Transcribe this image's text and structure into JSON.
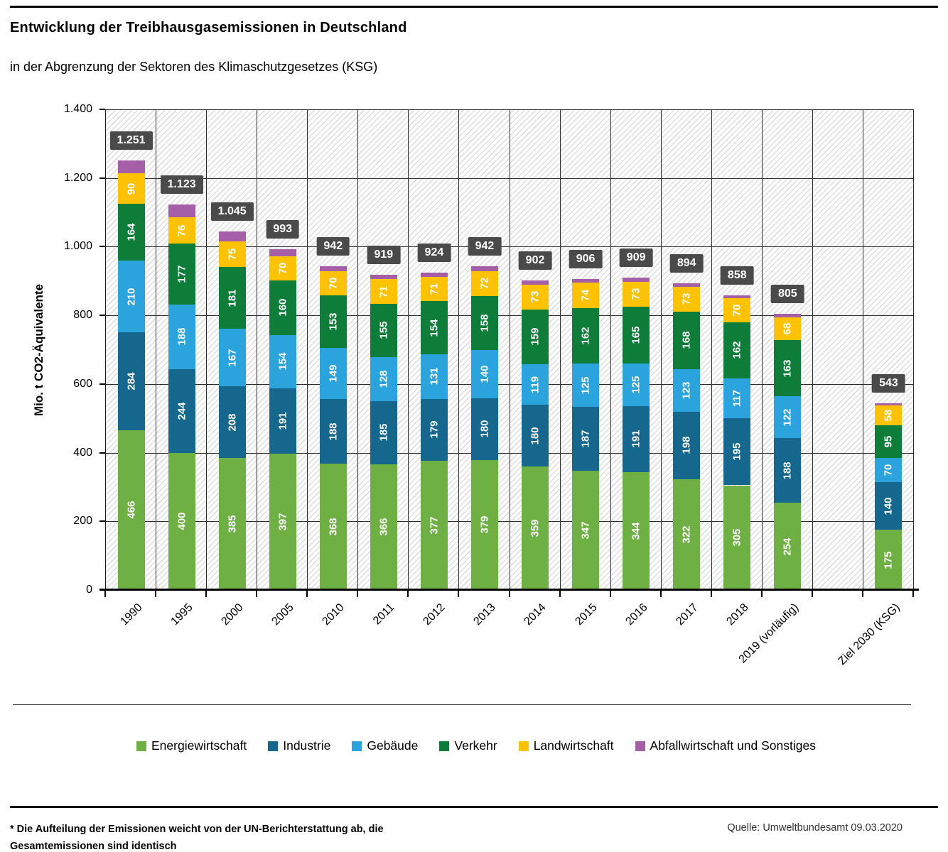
{
  "header": {
    "title": "Entwicklung der Treibhausgasemissionen in Deutschland",
    "subtitle": "in der Abgrenzung der Sektoren des Klimaschutzgesetzes (KSG)"
  },
  "footer": {
    "footnote_line1": "* Die Aufteilung der Emissionen weicht von der UN-Berichterstattung ab, die",
    "footnote_line2": "Gesamtemissionen sind identisch",
    "source": "Quelle: Umweltbundesamt  09.03.2020"
  },
  "chart_data": {
    "type": "bar",
    "variant": "stacked",
    "title": "Entwicklung der Treibhausgasemissionen in Deutschland",
    "subtitle": "in der Abgrenzung der Sektoren des Klimaschutzgesetzes (KSG)",
    "ylabel": "Mio. t CO2-Äquivalente",
    "xlabel": "",
    "ylim": [
      0,
      1400
    ],
    "ytick_step": 200,
    "ytick_labels": [
      "0",
      "200",
      "400",
      "600",
      "800",
      "1.000",
      "1.200",
      "1.400"
    ],
    "grid": "both",
    "legend_position": "bottom",
    "categories": [
      "1990",
      "1995",
      "2000",
      "2005",
      "2010",
      "2011",
      "2012",
      "2013",
      "2014",
      "2015",
      "2016",
      "2017",
      "2018",
      "2019 (vorläufig)",
      "Ziel 2030 (KSG)"
    ],
    "empty_slot_before_last_category": true,
    "totals": [
      1251,
      1123,
      1045,
      993,
      942,
      919,
      924,
      942,
      902,
      906,
      909,
      894,
      858,
      805,
      543
    ],
    "total_labels": [
      "1.251",
      "1.123",
      "1.045",
      "993",
      "942",
      "919",
      "924",
      "942",
      "902",
      "906",
      "909",
      "894",
      "858",
      "805",
      "543"
    ],
    "series": [
      {
        "name": "Energiewirtschaft",
        "color": "#6EB044",
        "labeled": true,
        "values": [
          466,
          400,
          385,
          397,
          368,
          366,
          377,
          379,
          359,
          347,
          344,
          322,
          305,
          254,
          175
        ]
      },
      {
        "name": "Industrie",
        "color": "#15678E",
        "labeled": true,
        "values": [
          284,
          244,
          208,
          191,
          188,
          185,
          179,
          180,
          180,
          187,
          191,
          198,
          195,
          188,
          140
        ]
      },
      {
        "name": "Gebäude",
        "color": "#2BA3DC",
        "labeled": true,
        "values": [
          210,
          188,
          167,
          154,
          149,
          128,
          131,
          140,
          119,
          125,
          125,
          123,
          117,
          122,
          70
        ]
      },
      {
        "name": "Verkehr",
        "color": "#0E7D3A",
        "labeled": true,
        "values": [
          164,
          177,
          181,
          160,
          153,
          155,
          154,
          158,
          159,
          162,
          165,
          168,
          162,
          163,
          95
        ]
      },
      {
        "name": "Landwirtschaft",
        "color": "#FDC204",
        "labeled": true,
        "values": [
          90,
          76,
          75,
          70,
          70,
          71,
          71,
          72,
          73,
          74,
          73,
          73,
          70,
          68,
          58
        ]
      },
      {
        "name": "Abfallwirtschaft und Sonstiges",
        "color": "#A45FA7",
        "labeled": false,
        "values": [
          37,
          38,
          29,
          21,
          14,
          14,
          12,
          13,
          12,
          11,
          11,
          10,
          9,
          10,
          5
        ]
      }
    ],
    "total_label_style": {
      "background": "#4A4A4A",
      "text_color": "#FFFFFF"
    }
  }
}
